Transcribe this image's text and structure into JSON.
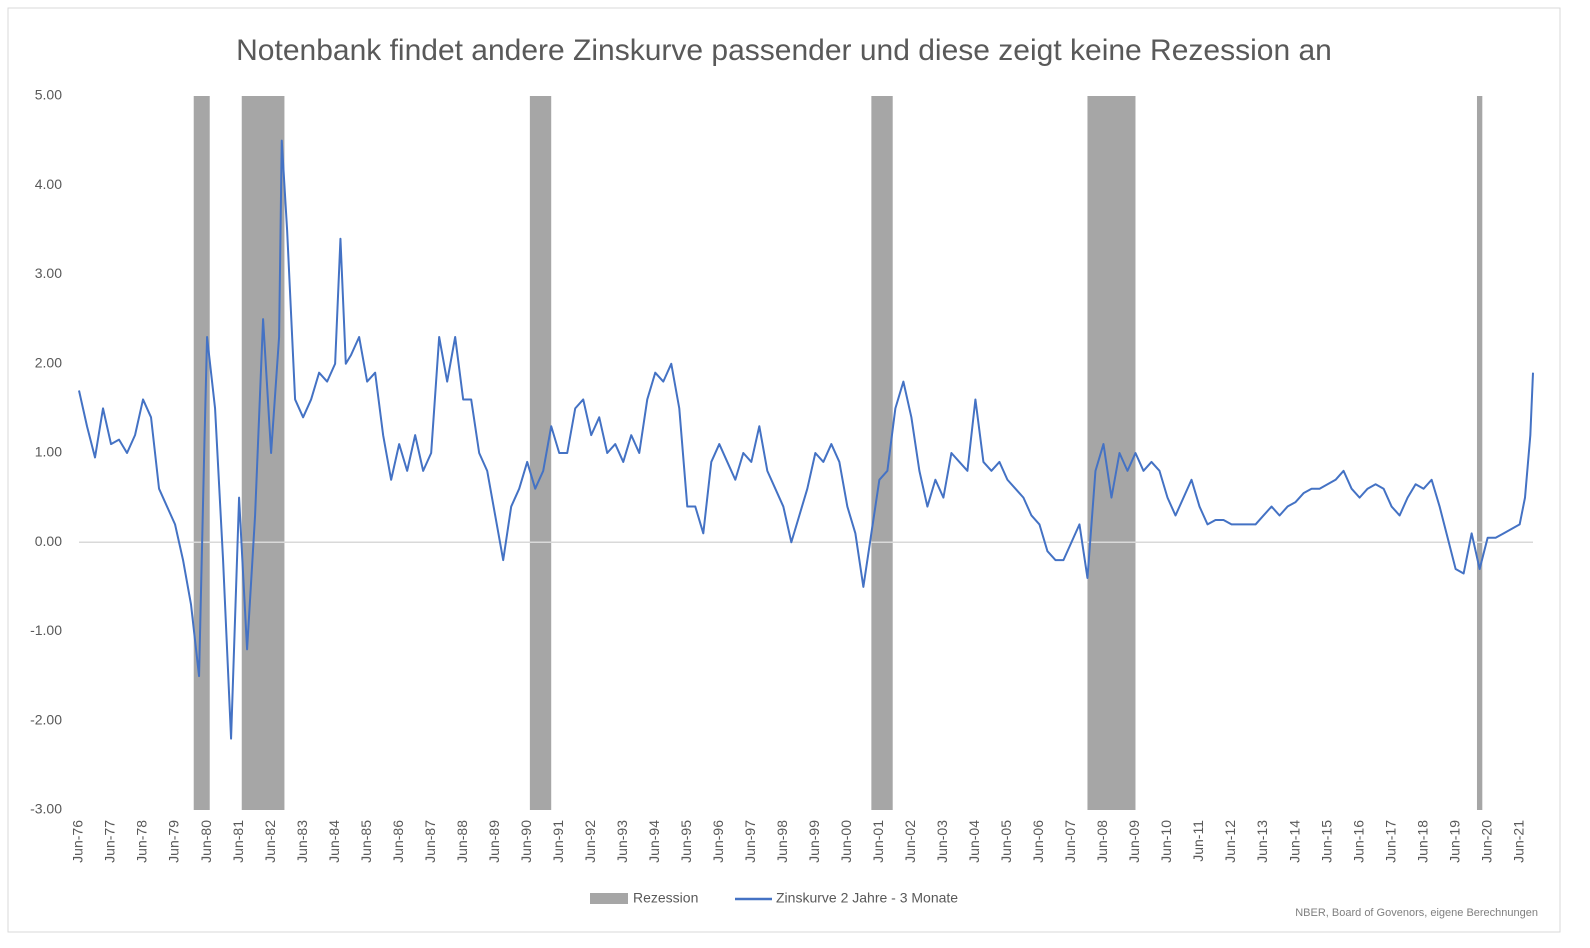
{
  "chart_data": {
    "type": "line",
    "title": "Notenbank findet andere Zinskurve passender und diese zeigt keine Rezession an",
    "source": "NBER, Board of Govenors, eigene Berechnungen",
    "xlim": [
      "1976-06",
      "2021-11"
    ],
    "ylim": [
      -3,
      5
    ],
    "yticks": [
      {
        "value": 5,
        "label": "5.00"
      },
      {
        "value": 4,
        "label": "4.00"
      },
      {
        "value": 3,
        "label": "3.00"
      },
      {
        "value": 2,
        "label": "2.00"
      },
      {
        "value": 1,
        "label": "1.00"
      },
      {
        "value": 0,
        "label": "0.00"
      },
      {
        "value": -1,
        "label": "-1.00"
      },
      {
        "value": -2,
        "label": "-2.00"
      },
      {
        "value": -3,
        "label": "-3.00"
      }
    ],
    "xticks": [
      {
        "value": "1976-06",
        "label": "Jun-76"
      },
      {
        "value": "1977-06",
        "label": "Jun-77"
      },
      {
        "value": "1978-06",
        "label": "Jun-78"
      },
      {
        "value": "1979-06",
        "label": "Jun-79"
      },
      {
        "value": "1980-06",
        "label": "Jun-80"
      },
      {
        "value": "1981-06",
        "label": "Jun-81"
      },
      {
        "value": "1982-06",
        "label": "Jun-82"
      },
      {
        "value": "1983-06",
        "label": "Jun-83"
      },
      {
        "value": "1984-06",
        "label": "Jun-84"
      },
      {
        "value": "1985-06",
        "label": "Jun-85"
      },
      {
        "value": "1986-06",
        "label": "Jun-86"
      },
      {
        "value": "1987-06",
        "label": "Jun-87"
      },
      {
        "value": "1988-06",
        "label": "Jun-88"
      },
      {
        "value": "1989-06",
        "label": "Jun-89"
      },
      {
        "value": "1990-06",
        "label": "Jun-90"
      },
      {
        "value": "1991-06",
        "label": "Jun-91"
      },
      {
        "value": "1992-06",
        "label": "Jun-92"
      },
      {
        "value": "1993-06",
        "label": "Jun-93"
      },
      {
        "value": "1994-06",
        "label": "Jun-94"
      },
      {
        "value": "1995-06",
        "label": "Jun-95"
      },
      {
        "value": "1996-06",
        "label": "Jun-96"
      },
      {
        "value": "1997-06",
        "label": "Jun-97"
      },
      {
        "value": "1998-06",
        "label": "Jun-98"
      },
      {
        "value": "1999-06",
        "label": "Jun-99"
      },
      {
        "value": "2000-06",
        "label": "Jun-00"
      },
      {
        "value": "2001-06",
        "label": "Jun-01"
      },
      {
        "value": "2002-06",
        "label": "Jun-02"
      },
      {
        "value": "2003-06",
        "label": "Jun-03"
      },
      {
        "value": "2004-06",
        "label": "Jun-04"
      },
      {
        "value": "2005-06",
        "label": "Jun-05"
      },
      {
        "value": "2006-06",
        "label": "Jun-06"
      },
      {
        "value": "2007-06",
        "label": "Jun-07"
      },
      {
        "value": "2008-06",
        "label": "Jun-08"
      },
      {
        "value": "2009-06",
        "label": "Jun-09"
      },
      {
        "value": "2010-06",
        "label": "Jun-10"
      },
      {
        "value": "2011-06",
        "label": "Jun-11"
      },
      {
        "value": "2012-06",
        "label": "Jun-12"
      },
      {
        "value": "2013-06",
        "label": "Jun-13"
      },
      {
        "value": "2014-06",
        "label": "Jun-14"
      },
      {
        "value": "2015-06",
        "label": "Jun-15"
      },
      {
        "value": "2016-06",
        "label": "Jun-16"
      },
      {
        "value": "2017-06",
        "label": "Jun-17"
      },
      {
        "value": "2018-06",
        "label": "Jun-18"
      },
      {
        "value": "2019-06",
        "label": "Jun-19"
      },
      {
        "value": "2020-06",
        "label": "Jun-20"
      },
      {
        "value": "2021-06",
        "label": "Jun-21"
      }
    ],
    "recessions": {
      "name": "Rezession",
      "color": "#a6a6a6",
      "periods": [
        {
          "start": "1980-01",
          "end": "1980-07"
        },
        {
          "start": "1981-07",
          "end": "1982-11"
        },
        {
          "start": "1990-07",
          "end": "1991-03"
        },
        {
          "start": "2001-03",
          "end": "2001-11"
        },
        {
          "start": "2007-12",
          "end": "2009-06"
        },
        {
          "start": "2020-02",
          "end": "2020-04"
        }
      ]
    },
    "x": [
      "1976-06",
      "1976-09",
      "1976-12",
      "1977-03",
      "1977-06",
      "1977-09",
      "1977-12",
      "1978-03",
      "1978-06",
      "1978-09",
      "1978-12",
      "1979-03",
      "1979-06",
      "1979-09",
      "1979-12",
      "1980-03",
      "1980-05",
      "1980-06",
      "1980-09",
      "1980-12",
      "1981-03",
      "1981-06",
      "1981-09",
      "1981-12",
      "1982-03",
      "1982-06",
      "1982-09",
      "1982-10",
      "1982-12",
      "1983-03",
      "1983-06",
      "1983-09",
      "1983-12",
      "1984-03",
      "1984-06",
      "1984-08",
      "1984-10",
      "1984-12",
      "1985-03",
      "1985-06",
      "1985-09",
      "1985-12",
      "1986-03",
      "1986-06",
      "1986-09",
      "1986-12",
      "1987-03",
      "1987-06",
      "1987-09",
      "1987-12",
      "1988-03",
      "1988-06",
      "1988-09",
      "1988-12",
      "1989-03",
      "1989-06",
      "1989-09",
      "1989-12",
      "1990-03",
      "1990-06",
      "1990-09",
      "1990-12",
      "1991-03",
      "1991-06",
      "1991-09",
      "1991-12",
      "1992-03",
      "1992-06",
      "1992-09",
      "1992-12",
      "1993-03",
      "1993-06",
      "1993-09",
      "1993-12",
      "1994-03",
      "1994-06",
      "1994-09",
      "1994-12",
      "1995-03",
      "1995-06",
      "1995-09",
      "1995-12",
      "1996-03",
      "1996-06",
      "1996-09",
      "1996-12",
      "1997-03",
      "1997-06",
      "1997-09",
      "1997-12",
      "1998-03",
      "1998-06",
      "1998-09",
      "1998-12",
      "1999-03",
      "1999-06",
      "1999-09",
      "1999-12",
      "2000-03",
      "2000-06",
      "2000-09",
      "2000-12",
      "2001-03",
      "2001-06",
      "2001-09",
      "2001-12",
      "2002-03",
      "2002-06",
      "2002-09",
      "2002-12",
      "2003-03",
      "2003-06",
      "2003-09",
      "2003-12",
      "2004-03",
      "2004-06",
      "2004-09",
      "2004-12",
      "2005-03",
      "2005-06",
      "2005-09",
      "2005-12",
      "2006-03",
      "2006-06",
      "2006-09",
      "2006-12",
      "2007-03",
      "2007-06",
      "2007-09",
      "2007-12",
      "2008-03",
      "2008-06",
      "2008-09",
      "2008-12",
      "2009-03",
      "2009-06",
      "2009-09",
      "2009-12",
      "2010-03",
      "2010-06",
      "2010-09",
      "2010-12",
      "2011-03",
      "2011-06",
      "2011-09",
      "2011-12",
      "2012-03",
      "2012-06",
      "2012-09",
      "2012-12",
      "2013-03",
      "2013-06",
      "2013-09",
      "2013-12",
      "2014-03",
      "2014-06",
      "2014-09",
      "2014-12",
      "2015-03",
      "2015-06",
      "2015-09",
      "2015-12",
      "2016-03",
      "2016-06",
      "2016-09",
      "2016-12",
      "2017-03",
      "2017-06",
      "2017-09",
      "2017-12",
      "2018-03",
      "2018-06",
      "2018-09",
      "2018-12",
      "2019-03",
      "2019-06",
      "2019-09",
      "2019-12",
      "2020-03",
      "2020-06",
      "2020-09",
      "2020-12",
      "2021-03",
      "2021-06",
      "2021-08",
      "2021-10",
      "2021-11"
    ],
    "series": [
      {
        "name": "Zinskurve 2 Jahre - 3 Monate",
        "color": "#4472c4",
        "values": [
          1.7,
          1.3,
          0.95,
          1.5,
          1.1,
          1.15,
          1.0,
          1.2,
          1.6,
          1.4,
          0.6,
          0.4,
          0.2,
          -0.2,
          -0.7,
          -1.5,
          1.1,
          2.3,
          1.5,
          -0.2,
          -2.2,
          0.5,
          -1.2,
          0.3,
          2.5,
          1.0,
          2.3,
          4.5,
          3.5,
          1.6,
          1.4,
          1.6,
          1.9,
          1.8,
          2.0,
          3.4,
          2.0,
          2.1,
          2.3,
          1.8,
          1.9,
          1.2,
          0.7,
          1.1,
          0.8,
          1.2,
          0.8,
          1.0,
          2.3,
          1.8,
          2.3,
          1.6,
          1.6,
          1.0,
          0.8,
          0.3,
          -0.2,
          0.4,
          0.6,
          0.9,
          0.6,
          0.8,
          1.3,
          1.0,
          1.0,
          1.5,
          1.6,
          1.2,
          1.4,
          1.0,
          1.1,
          0.9,
          1.2,
          1.0,
          1.6,
          1.9,
          1.8,
          2.0,
          1.5,
          0.4,
          0.4,
          0.1,
          0.9,
          1.1,
          0.9,
          0.7,
          1.0,
          0.9,
          1.3,
          0.8,
          0.6,
          0.4,
          0.0,
          0.3,
          0.6,
          1.0,
          0.9,
          1.1,
          0.9,
          0.4,
          0.1,
          -0.5,
          0.1,
          0.7,
          0.8,
          1.5,
          1.8,
          1.4,
          0.8,
          0.4,
          0.7,
          0.5,
          1.0,
          0.9,
          0.8,
          1.6,
          0.9,
          0.8,
          0.9,
          0.7,
          0.6,
          0.5,
          0.3,
          0.2,
          -0.1,
          -0.2,
          -0.2,
          0.0,
          0.2,
          -0.4,
          0.8,
          1.1,
          0.5,
          1.0,
          0.8,
          1.0,
          0.8,
          0.9,
          0.8,
          0.5,
          0.3,
          0.5,
          0.7,
          0.4,
          0.2,
          0.25,
          0.25,
          0.2,
          0.2,
          0.2,
          0.2,
          0.3,
          0.4,
          0.3,
          0.4,
          0.45,
          0.55,
          0.6,
          0.6,
          0.65,
          0.7,
          0.8,
          0.6,
          0.5,
          0.6,
          0.65,
          0.6,
          0.4,
          0.3,
          0.5,
          0.65,
          0.6,
          0.7,
          0.4,
          0.05,
          -0.3,
          -0.35,
          0.1,
          -0.3,
          0.05,
          0.05,
          0.1,
          0.15,
          0.2,
          0.5,
          1.2,
          1.9
        ]
      }
    ]
  }
}
